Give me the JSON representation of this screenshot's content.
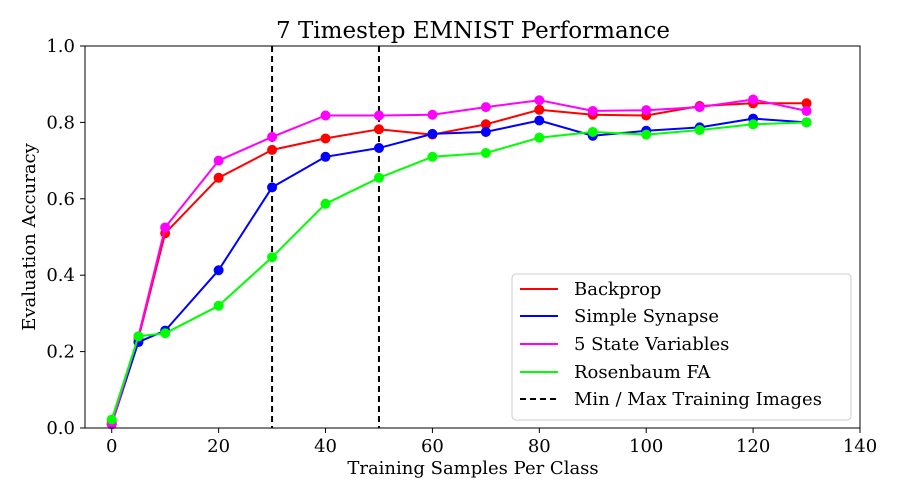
{
  "chart_data": {
    "type": "line",
    "title": "7 Timestep EMNIST Performance",
    "xlabel": "Training Samples Per Class",
    "ylabel": "Evaluation Accuracy",
    "xlim": [
      -5,
      140
    ],
    "ylim": [
      0,
      1.0
    ],
    "xticks": [
      0,
      20,
      40,
      60,
      80,
      100,
      120,
      140
    ],
    "xtick_labels": [
      "0",
      "20",
      "40",
      "60",
      "80",
      "100",
      "120",
      "140"
    ],
    "yticks": [
      0,
      0.2,
      0.4,
      0.6,
      0.8,
      1.0
    ],
    "ytick_labels": [
      "0.0",
      "0.2",
      "0.4",
      "0.6",
      "0.8",
      "1.0"
    ],
    "grid": false,
    "legend_position": "lower-right",
    "x": [
      0,
      5,
      10,
      20,
      30,
      40,
      50,
      60,
      70,
      80,
      90,
      100,
      110,
      120,
      130
    ],
    "series": [
      {
        "name": "Backprop",
        "color": "#ff0000",
        "values": [
          0.015,
          0.235,
          0.51,
          0.655,
          0.728,
          0.758,
          0.782,
          0.768,
          0.795,
          0.833,
          0.82,
          0.818,
          0.843,
          0.85,
          0.85
        ]
      },
      {
        "name": "Simple Synapse",
        "color": "#0000ff",
        "values": [
          0.01,
          0.225,
          0.255,
          0.413,
          0.63,
          0.71,
          0.733,
          0.77,
          0.775,
          0.805,
          0.765,
          0.778,
          0.787,
          0.81,
          0.8
        ]
      },
      {
        "name": "5 State Variables",
        "color": "#ff00ff",
        "values": [
          0.01,
          0.24,
          0.525,
          0.7,
          0.762,
          0.818,
          0.818,
          0.82,
          0.84,
          0.858,
          0.83,
          0.832,
          0.84,
          0.86,
          0.83
        ]
      },
      {
        "name": "Rosenbaum FA",
        "color": "#00ff00",
        "values": [
          0.022,
          0.24,
          0.248,
          0.32,
          0.447,
          0.587,
          0.655,
          0.71,
          0.72,
          0.76,
          0.775,
          0.768,
          0.78,
          0.795,
          0.8
        ]
      }
    ],
    "vlines": {
      "name": "Min / Max Training Images",
      "color": "#000000",
      "style": "dashed",
      "x": [
        30,
        50
      ]
    }
  }
}
